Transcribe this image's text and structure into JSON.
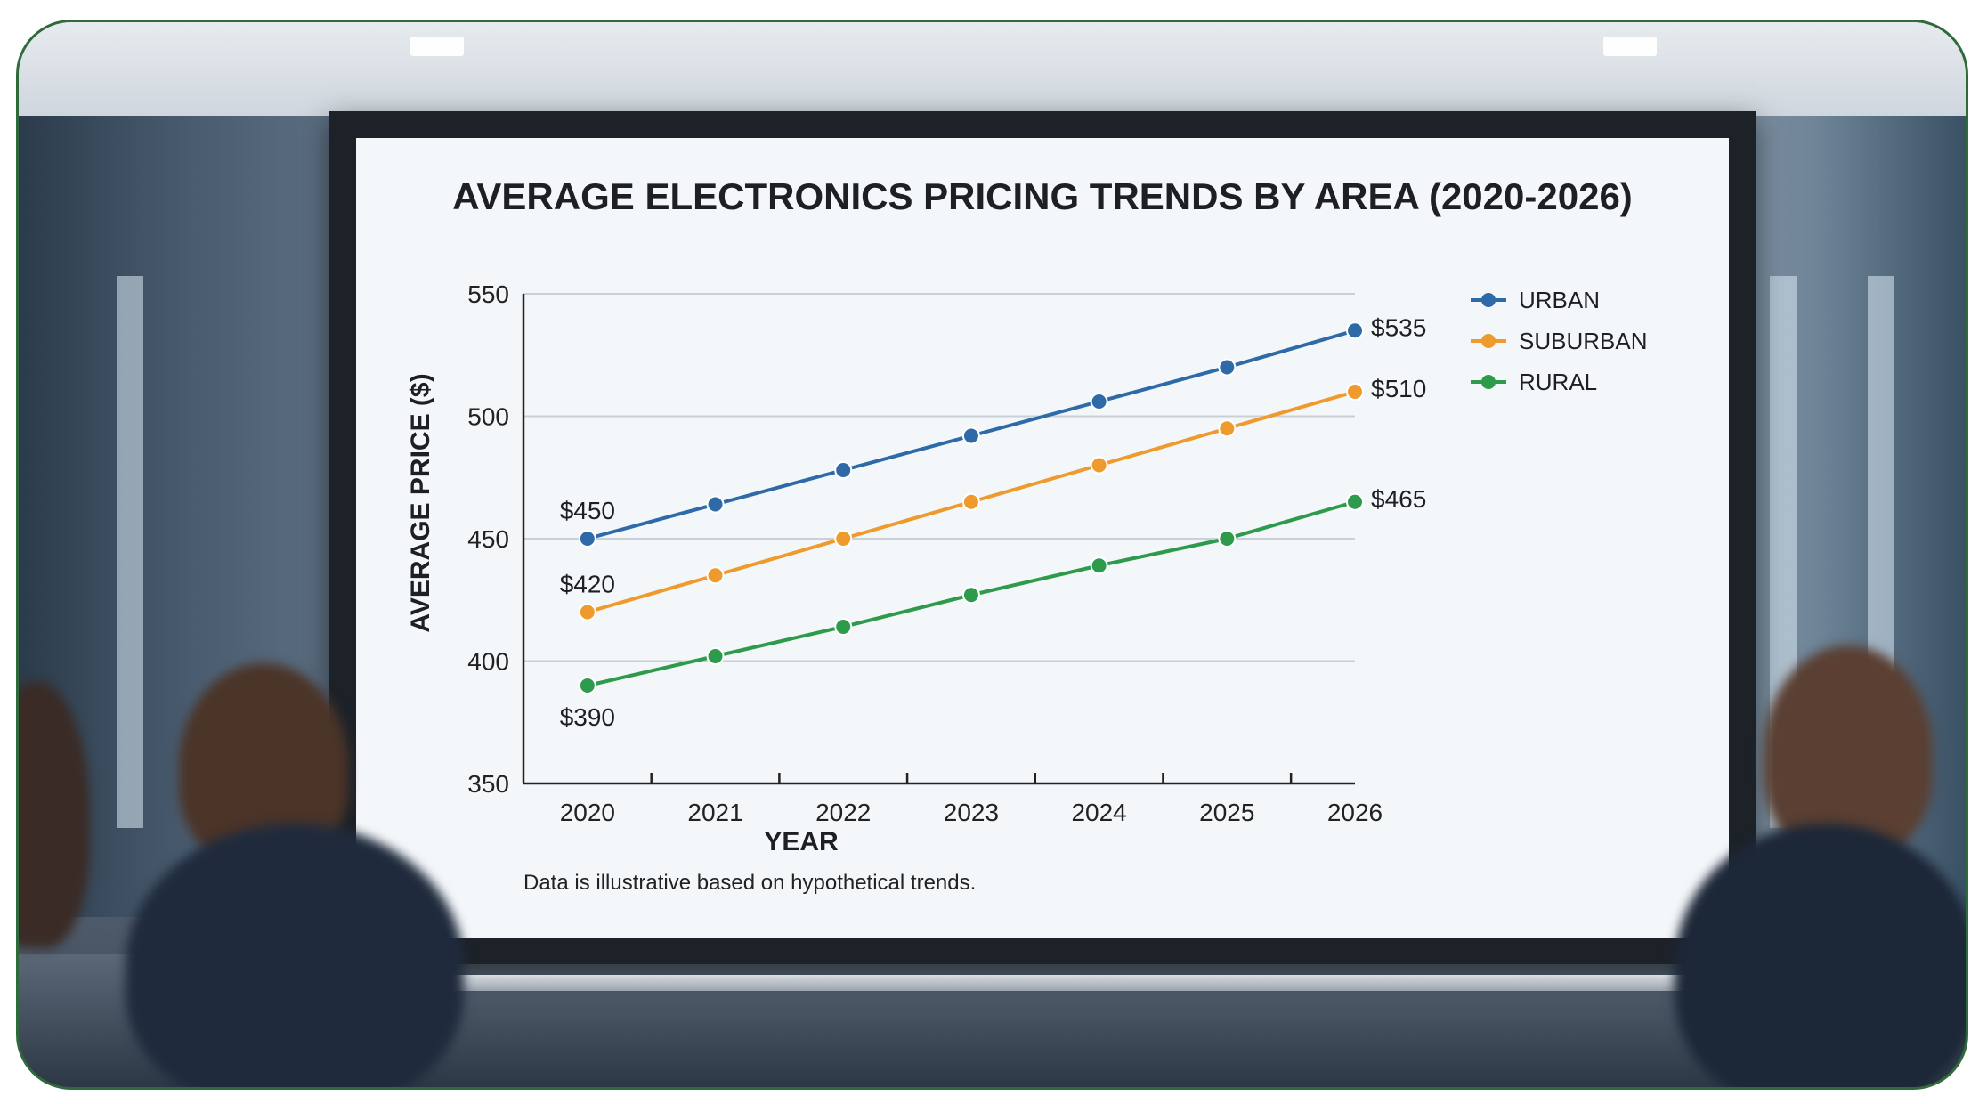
{
  "chart_data": {
    "type": "line",
    "title": "AVERAGE ELECTRONICS PRICING TRENDS BY AREA (2020-2026)",
    "xlabel": "YEAR",
    "ylabel": "AVERAGE PRICE ($)",
    "categories": [
      "2020",
      "2021",
      "2022",
      "2023",
      "2024",
      "2025",
      "2026"
    ],
    "ylim": [
      350,
      550
    ],
    "yticks": [
      "350",
      "400",
      "450",
      "500",
      "550"
    ],
    "grid": true,
    "legend_position": "top-right",
    "series": [
      {
        "name": "URBAN",
        "color": "#2f6aa8",
        "values": [
          450,
          464,
          478,
          492,
          506,
          520,
          535
        ]
      },
      {
        "name": "SUBURBAN",
        "color": "#ef9a2d",
        "values": [
          420,
          435,
          450,
          465,
          480,
          495,
          510
        ]
      },
      {
        "name": "RURAL",
        "color": "#2e9a4c",
        "values": [
          390,
          402,
          414,
          427,
          439,
          450,
          465
        ]
      }
    ],
    "annotations": [
      {
        "text": "$450",
        "series": 0,
        "index": 0
      },
      {
        "text": "$420",
        "series": 1,
        "index": 0
      },
      {
        "text": "$390",
        "series": 2,
        "index": 0
      },
      {
        "text": "$535",
        "series": 0,
        "index": 6
      },
      {
        "text": "$510",
        "series": 1,
        "index": 6
      },
      {
        "text": "$465",
        "series": 2,
        "index": 6
      }
    ],
    "footnote": "Data is illustrative based on hypothetical trends."
  },
  "colors": {
    "frame_border": "#2f6b3a",
    "screen_bg": "#f4f7fa",
    "grid": "#c9d0d7",
    "axis": "#222222"
  }
}
